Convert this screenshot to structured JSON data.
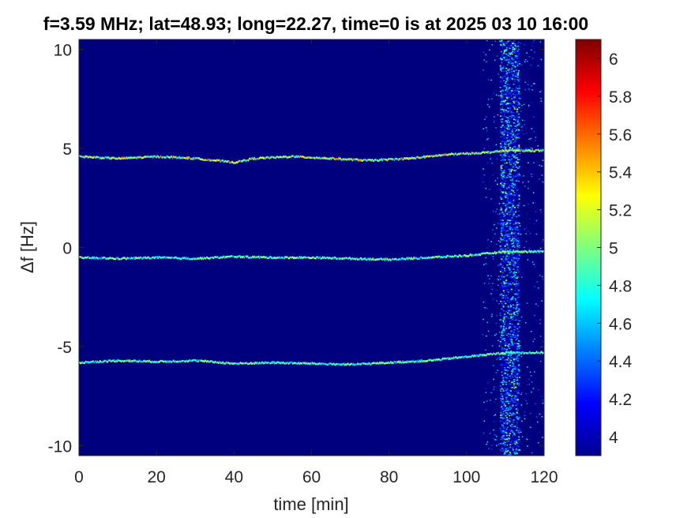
{
  "chart_data": {
    "type": "heatmap",
    "title": "f=3.59 MHz;  lat=48.93; long=22.27, time=0 is at 2025 03 10 16:00",
    "xlabel": "time [min]",
    "ylabel": "Δf [Hz]",
    "xlim": [
      0,
      120
    ],
    "ylim": [
      -10.5,
      10.5
    ],
    "xticks": [
      0,
      20,
      40,
      60,
      80,
      100,
      120
    ],
    "yticks": [
      -10,
      -5,
      0,
      5,
      10
    ],
    "colorbar": {
      "colormap": "jet",
      "clim": [
        3.9,
        6.1
      ],
      "ticks": [
        4,
        4.2,
        4.4,
        4.6,
        4.8,
        5,
        5.2,
        5.4,
        5.6,
        5.8,
        6
      ]
    },
    "background_level": 3.95,
    "traces": [
      {
        "label_offset_hz": 5,
        "points": [
          [
            0,
            4.6
          ],
          [
            10,
            4.5
          ],
          [
            20,
            4.6
          ],
          [
            30,
            4.5
          ],
          [
            40,
            4.3
          ],
          [
            45,
            4.5
          ],
          [
            55,
            4.6
          ],
          [
            65,
            4.5
          ],
          [
            75,
            4.4
          ],
          [
            85,
            4.5
          ],
          [
            95,
            4.7
          ],
          [
            105,
            4.8
          ],
          [
            110,
            4.9
          ],
          [
            120,
            4.9
          ]
        ]
      },
      {
        "label_offset_hz": 0,
        "points": [
          [
            0,
            -0.5
          ],
          [
            10,
            -0.55
          ],
          [
            20,
            -0.5
          ],
          [
            30,
            -0.55
          ],
          [
            40,
            -0.45
          ],
          [
            50,
            -0.5
          ],
          [
            60,
            -0.5
          ],
          [
            70,
            -0.55
          ],
          [
            80,
            -0.6
          ],
          [
            90,
            -0.5
          ],
          [
            100,
            -0.4
          ],
          [
            110,
            -0.2
          ],
          [
            120,
            -0.2
          ]
        ]
      },
      {
        "label_offset_hz": -5,
        "points": [
          [
            0,
            -5.8
          ],
          [
            10,
            -5.7
          ],
          [
            20,
            -5.75
          ],
          [
            30,
            -5.7
          ],
          [
            40,
            -5.85
          ],
          [
            50,
            -5.8
          ],
          [
            60,
            -5.85
          ],
          [
            70,
            -5.9
          ],
          [
            80,
            -5.8
          ],
          [
            90,
            -5.7
          ],
          [
            100,
            -5.5
          ],
          [
            110,
            -5.3
          ],
          [
            120,
            -5.3
          ]
        ]
      }
    ],
    "noise_band": {
      "x_range": [
        108.5,
        113.5
      ]
    },
    "colors": {
      "background": "#00007f",
      "frame": "#000000",
      "text": "#262626"
    }
  }
}
